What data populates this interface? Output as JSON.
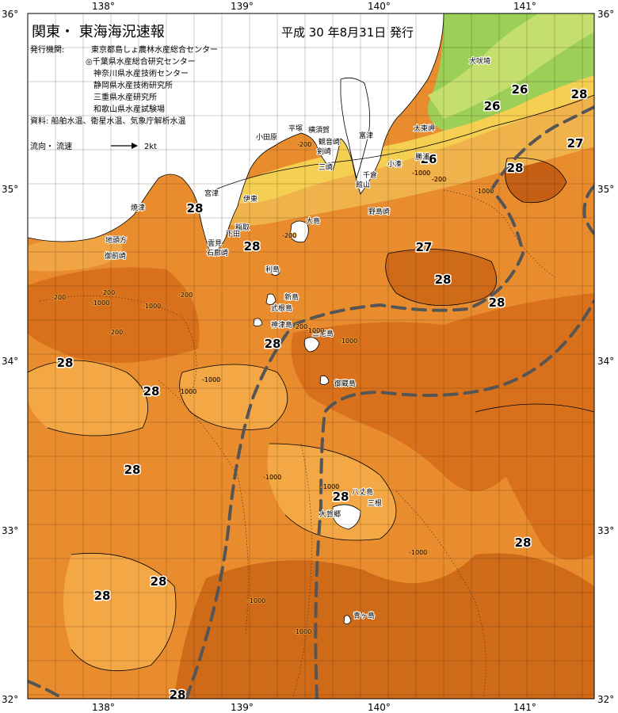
{
  "map": {
    "title": "関東・ 東海海況速報",
    "issue_date": "平成  30 年8月31日  発行",
    "issuers_label": "発行機関:",
    "issuers": [
      "東京都島しょ農林水産総合センター",
      "◎千葉県水産総合研究センター",
      "神奈川県水産技術センター",
      "静岡県水産技術研究所",
      "三重県水産研究所",
      "和歌山県水産試験場"
    ],
    "sources": "資料: 船舶水温、衛星水温、気象庁解析水温",
    "current_legend": "流向・ 流速",
    "current_scale": "2kt",
    "lon_labels_top": [
      "138°",
      "139°",
      "140°",
      "141°"
    ],
    "lon_labels_bottom": [
      "138°",
      "139°",
      "140°",
      "141°"
    ],
    "lat_labels_left": [
      "36°",
      "35°",
      "34°",
      "33°",
      "32°"
    ],
    "lat_labels_right": [
      "36°",
      "35°",
      "34°",
      "33°",
      "32°"
    ],
    "isotherm_labels": [
      "28",
      "28",
      "27",
      "28",
      "28",
      "28",
      "28",
      "28",
      "28",
      "28",
      "28",
      "28",
      "28",
      "27",
      "28",
      "26",
      "26",
      "26",
      "28"
    ],
    "depth_labels": [
      "-200",
      "-200",
      "-1000",
      "-200",
      "-1000",
      "-200",
      "-1000",
      "-1000",
      "-200",
      "-1000",
      "-1000",
      "-1000",
      "-1000",
      "-1000",
      "-1000",
      "-1000",
      "-1000",
      "-200",
      "-200",
      "-1000",
      "-200"
    ],
    "place_names": [
      "犬吠埼",
      "太東岬",
      "勝浦",
      "小湊",
      "千倉",
      "館山",
      "野島崎",
      "富津",
      "横須賀",
      "観音崎",
      "平塚",
      "小田原",
      "剣崎",
      "三崎",
      "大島",
      "伊東",
      "稲取",
      "下田",
      "雲見",
      "石廊崎",
      "利島",
      "新島",
      "式根島",
      "神津島",
      "三宅島",
      "御蔵島",
      "八丈島",
      "三根",
      "大賀郷",
      "青ヶ島",
      "焼津",
      "御前崎",
      "地頭方",
      "宮津"
    ],
    "colors": {
      "temp_26": "#9ccf58",
      "temp_27": "#f4cf52",
      "temp_27_5": "#f6a541",
      "temp_28": "#e7892b",
      "temp_29": "#d96f1b",
      "temp_30": "#bf5a14",
      "land": "#ffffff",
      "kuroshio": "#555555"
    }
  }
}
